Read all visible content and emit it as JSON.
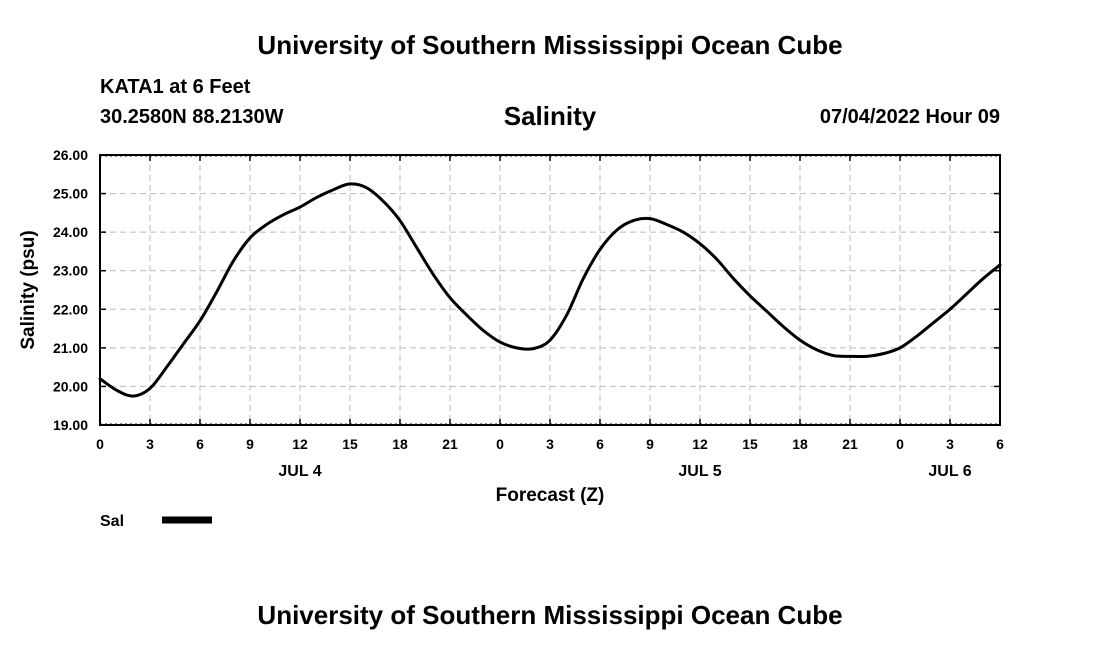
{
  "header": {
    "title": "University of Southern Mississippi Ocean Cube",
    "station": "KATA1 at 6 Feet",
    "coords": "30.2580N  88.2130W",
    "datetime": "07/04/2022 Hour 09"
  },
  "footer": {
    "title": "University of Southern Mississippi Ocean Cube"
  },
  "chart_data": {
    "type": "line",
    "title": "Salinity",
    "xlabel": "Forecast (Z)",
    "ylabel": "Salinity (psu)",
    "ylim": [
      19.0,
      26.0
    ],
    "y_ticks": [
      "19.00",
      "20.00",
      "21.00",
      "22.00",
      "23.00",
      "24.00",
      "25.00",
      "26.00"
    ],
    "x_tick_hours": [
      0,
      3,
      6,
      9,
      12,
      15,
      18,
      21,
      24,
      27,
      30,
      33,
      36,
      39,
      42,
      45,
      48,
      51,
      54
    ],
    "x_tick_labels": [
      "0",
      "3",
      "6",
      "9",
      "12",
      "15",
      "18",
      "21",
      "0",
      "3",
      "6",
      "9",
      "12",
      "15",
      "18",
      "21",
      "0",
      "3",
      "6"
    ],
    "date_labels": [
      {
        "hour": 12,
        "text": "JUL 4"
      },
      {
        "hour": 36,
        "text": "JUL 5"
      },
      {
        "hour": 51,
        "text": "JUL 6"
      }
    ],
    "grid": true,
    "legend": {
      "position": "bottom-left",
      "entries": [
        {
          "name": "Sal",
          "color": "#000000"
        }
      ]
    },
    "series": [
      {
        "name": "Sal",
        "color": "#000000",
        "x_hours": [
          0,
          1,
          2,
          3,
          4,
          5,
          6,
          7,
          8,
          9,
          10,
          11,
          12,
          13,
          14,
          15,
          16,
          17,
          18,
          19,
          20,
          21,
          22,
          23,
          24,
          25,
          26,
          27,
          28,
          29,
          30,
          31,
          32,
          33,
          34,
          35,
          36,
          37,
          38,
          39,
          40,
          41,
          42,
          43,
          44,
          45,
          46,
          47,
          48,
          49,
          50,
          51,
          52,
          53,
          54
        ],
        "values": [
          20.2,
          19.9,
          19.75,
          19.95,
          20.5,
          21.1,
          21.7,
          22.45,
          23.25,
          23.85,
          24.2,
          24.45,
          24.65,
          24.9,
          25.1,
          25.25,
          25.15,
          24.8,
          24.3,
          23.6,
          22.9,
          22.3,
          21.85,
          21.45,
          21.15,
          21.0,
          20.98,
          21.2,
          21.85,
          22.8,
          23.55,
          24.05,
          24.3,
          24.35,
          24.2,
          24.0,
          23.7,
          23.3,
          22.8,
          22.35,
          21.95,
          21.55,
          21.2,
          20.95,
          20.8,
          20.78,
          20.78,
          20.85,
          21.0,
          21.3,
          21.65,
          22.0,
          22.4,
          22.8,
          23.15
        ]
      }
    ]
  }
}
